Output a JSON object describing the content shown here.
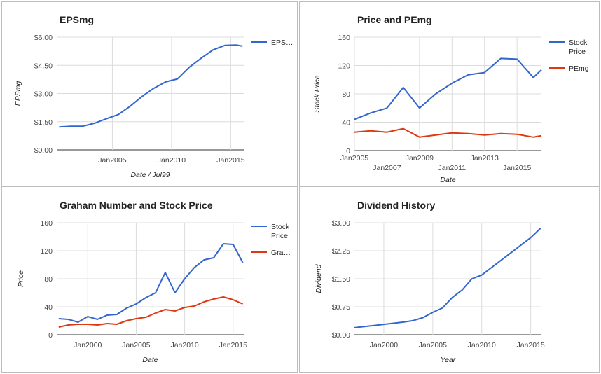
{
  "chart_data": [
    {
      "type": "line",
      "title": "EPSmg",
      "xlabel": "Date / Jul99",
      "ylabel": "EPSmg",
      "x": [
        2000.5,
        2001.5,
        2002.5,
        2003.5,
        2004.5,
        2005.5,
        2006.5,
        2007.5,
        2008.5,
        2009.5,
        2010.5,
        2011.5,
        2012.5,
        2013.5,
        2014.5,
        2015.5,
        2016
      ],
      "series": [
        {
          "name": "EPS…",
          "color": "#3366cc",
          "values": [
            1.22,
            1.26,
            1.26,
            1.42,
            1.66,
            1.88,
            2.32,
            2.84,
            3.28,
            3.62,
            3.78,
            4.4,
            4.88,
            5.32,
            5.56,
            5.58,
            5.52
          ]
        }
      ],
      "xlim": [
        2000.3,
        2016.1
      ],
      "ylim": [
        0,
        6
      ],
      "yticks": [
        0,
        1.5,
        3,
        4.5,
        6
      ],
      "ytick_labels": [
        "$0.00",
        "$1.50",
        "$3.00",
        "$4.50",
        "$6.00"
      ],
      "xticks": [
        2005,
        2010,
        2015
      ],
      "xtick_labels": [
        "Jan2005",
        "Jan2010",
        "Jan2015"
      ],
      "legend": "right"
    },
    {
      "type": "line",
      "title": "Price and PEmg",
      "xlabel": "Date",
      "ylabel": "Stock Price",
      "x": [
        2005.0,
        2006.0,
        2007.0,
        2008.0,
        2009.0,
        2010.0,
        2011.0,
        2012.0,
        2013.0,
        2014.0,
        2015.0,
        2016.0,
        2016.5
      ],
      "series": [
        {
          "name": "Stock Price",
          "color": "#3366cc",
          "values": [
            44,
            53,
            60,
            89,
            60,
            80,
            95,
            107,
            110,
            130,
            129,
            103,
            114
          ]
        },
        {
          "name": "PEmg",
          "color": "#dc3912",
          "values": [
            26,
            28,
            26,
            31,
            19,
            22,
            25,
            24,
            22,
            24,
            23,
            19,
            21
          ]
        }
      ],
      "xlim": [
        2005.0,
        2016.5
      ],
      "ylim": [
        0,
        160
      ],
      "yticks": [
        0,
        40,
        80,
        120,
        160
      ],
      "ytick_labels": [
        "0",
        "40",
        "80",
        "120",
        "160"
      ],
      "xticks": [
        2005,
        2007,
        2009,
        2011,
        2013,
        2015
      ],
      "xtick_labels": [
        "Jan2005",
        "Jan2007",
        "Jan2009",
        "Jan2011",
        "Jan2013",
        "Jan2015"
      ],
      "legend": "right"
    },
    {
      "type": "line",
      "title": "Graham Number and Stock Price",
      "xlabel": "Date",
      "ylabel": "Price",
      "x": [
        1997,
        1998,
        1999,
        2000,
        2001,
        2002,
        2003,
        2004,
        2005,
        2006,
        2007,
        2008,
        2009,
        2010,
        2011,
        2012,
        2013,
        2014,
        2015,
        2016
      ],
      "series": [
        {
          "name": "Stock Price",
          "color": "#3366cc",
          "values": [
            23,
            22,
            18,
            26,
            22,
            28,
            29,
            38,
            44,
            53,
            60,
            89,
            60,
            80,
            96,
            107,
            110,
            130,
            129,
            103
          ]
        },
        {
          "name": "Gra…",
          "color": "#dc3912",
          "values": [
            11,
            14,
            15,
            15,
            14,
            16,
            15,
            20,
            23,
            25,
            31,
            36,
            34,
            39,
            41,
            47,
            51,
            54,
            50,
            44
          ]
        }
      ],
      "xlim": [
        1996.8,
        2016.1
      ],
      "ylim": [
        0,
        160
      ],
      "yticks": [
        0,
        40,
        80,
        120,
        160
      ],
      "ytick_labels": [
        "0",
        "40",
        "80",
        "120",
        "160"
      ],
      "xticks": [
        2000,
        2005,
        2010,
        2015
      ],
      "xtick_labels": [
        "Jan2000",
        "Jan2005",
        "Jan2010",
        "Jan2015"
      ],
      "legend": "right"
    },
    {
      "type": "line",
      "title": "Dividend History",
      "xlabel": "Year",
      "ylabel": "Dividend",
      "x": [
        1997,
        1998,
        1999,
        2000,
        2001,
        2002,
        2003,
        2004,
        2005,
        2006,
        2007,
        2008,
        2009,
        2010,
        2011,
        2012,
        2013,
        2014,
        2015,
        2016
      ],
      "series": [
        {
          "name": "Dividend",
          "color": "#3366cc",
          "values": [
            0.19,
            0.22,
            0.25,
            0.28,
            0.31,
            0.34,
            0.38,
            0.46,
            0.6,
            0.72,
            1.0,
            1.2,
            1.5,
            1.6,
            1.8,
            2.0,
            2.2,
            2.4,
            2.6,
            2.85
          ]
        }
      ],
      "xlim": [
        1997,
        2016.1
      ],
      "ylim": [
        0,
        3
      ],
      "yticks": [
        0,
        0.75,
        1.5,
        2.25,
        3
      ],
      "ytick_labels": [
        "$0.00",
        "$0.75",
        "$1.50",
        "$2.25",
        "$3.00"
      ],
      "xticks": [
        2000,
        2005,
        2010,
        2015
      ],
      "xtick_labels": [
        "Jan2000",
        "Jan2005",
        "Jan2010",
        "Jan2015"
      ],
      "legend": "none"
    }
  ]
}
